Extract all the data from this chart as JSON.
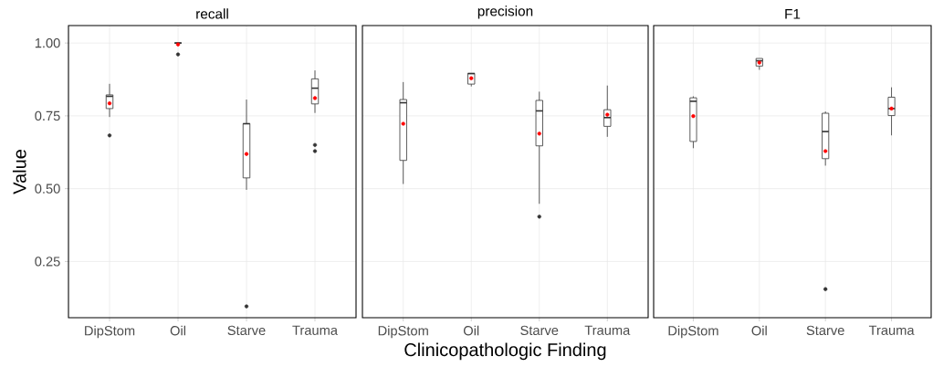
{
  "chart_data": [
    {
      "type": "box",
      "title": "recall",
      "ylabel": "Value",
      "categories": [
        "DipStom",
        "Oil",
        "Starve",
        "Trauma"
      ],
      "ylim": [
        0.057,
        1.06
      ],
      "yticks": [
        {
          "value": 0.25,
          "label": "0.25"
        },
        {
          "value": 0.5,
          "label": "0.50"
        },
        {
          "value": 0.75,
          "label": "0.75"
        },
        {
          "value": 1.0,
          "label": "1.00"
        }
      ],
      "grid": true,
      "boxes": [
        {
          "low": 0.746,
          "q1": 0.775,
          "median": 0.817,
          "q3": 0.822,
          "high": 0.86,
          "mean": 0.793,
          "outliers": [
            0.683
          ]
        },
        {
          "low": 1.0,
          "q1": 1.0,
          "median": 1.0,
          "q3": 1.0,
          "high": 1.0,
          "mean": 0.995,
          "outliers": [
            0.961
          ]
        },
        {
          "low": 0.496,
          "q1": 0.537,
          "median": 0.723,
          "q3": 0.723,
          "high": 0.806,
          "mean": 0.619,
          "outliers": [
            0.096
          ]
        },
        {
          "low": 0.76,
          "q1": 0.791,
          "median": 0.845,
          "q3": 0.877,
          "high": 0.906,
          "mean": 0.811,
          "outliers": [
            0.65,
            0.629
          ]
        }
      ]
    },
    {
      "type": "box",
      "title": "precision",
      "xlabel": "Clinicopathologic Finding",
      "categories": [
        "DipStom",
        "Oil",
        "Starve",
        "Trauma"
      ],
      "ylim": [
        0.057,
        1.06
      ],
      "yticks": [
        0.25,
        0.5,
        0.75,
        1.0
      ],
      "grid": true,
      "tick_labels": "x",
      "boxes": [
        {
          "low": 0.516,
          "q1": 0.597,
          "median": 0.795,
          "q3": 0.806,
          "high": 0.866,
          "mean": 0.723
        },
        {
          "low": 0.851,
          "q1": 0.859,
          "median": 0.895,
          "q3": 0.896,
          "high": 0.896,
          "mean": 0.879
        },
        {
          "low": 0.448,
          "q1": 0.647,
          "median": 0.767,
          "q3": 0.803,
          "high": 0.833,
          "mean": 0.689,
          "outliers": [
            0.404
          ]
        },
        {
          "low": 0.678,
          "q1": 0.714,
          "median": 0.744,
          "q3": 0.771,
          "high": 0.854,
          "mean": 0.754
        }
      ]
    },
    {
      "type": "box",
      "title": "F1",
      "categories": [
        "DipStom",
        "Oil",
        "Starve",
        "Trauma"
      ],
      "ylim": [
        0.057,
        1.06
      ],
      "yticks": [
        0.25,
        0.5,
        0.75,
        1.0
      ],
      "grid": true,
      "tick_labels": "x",
      "boxes": [
        {
          "low": 0.639,
          "q1": 0.662,
          "median": 0.8,
          "q3": 0.812,
          "high": 0.817,
          "mean": 0.749
        },
        {
          "low": 0.908,
          "q1": 0.921,
          "median": 0.939,
          "q3": 0.947,
          "high": 0.947,
          "mean": 0.933
        },
        {
          "low": 0.579,
          "q1": 0.603,
          "median": 0.696,
          "q3": 0.759,
          "high": 0.765,
          "mean": 0.629,
          "outliers": [
            0.155
          ]
        },
        {
          "low": 0.683,
          "q1": 0.751,
          "median": 0.775,
          "q3": 0.814,
          "high": 0.848,
          "mean": 0.775
        }
      ]
    }
  ]
}
